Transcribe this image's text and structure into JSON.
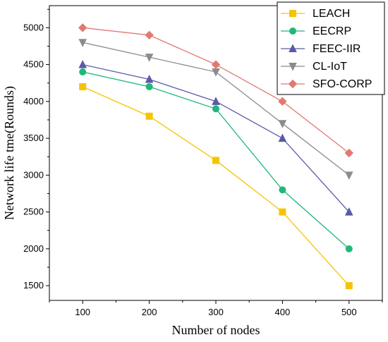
{
  "chart_data": {
    "type": "line",
    "title": "",
    "xlabel": "Number of nodes",
    "ylabel": "Network life tme(Rounds)",
    "x": [
      100,
      200,
      300,
      400,
      500
    ],
    "xlim": [
      50,
      550
    ],
    "ylim": [
      1300,
      5300
    ],
    "yticks": [
      1500,
      2000,
      2500,
      3000,
      3500,
      4000,
      4500,
      5000
    ],
    "grid": false,
    "legend_position": "top-right",
    "series": [
      {
        "name": "LEACH",
        "values": [
          4200,
          3800,
          3200,
          2500,
          1500
        ],
        "color": "#f5c400",
        "marker": "square"
      },
      {
        "name": "EECRP",
        "values": [
          4400,
          4200,
          3900,
          2800,
          2000
        ],
        "color": "#1fb87a",
        "marker": "circle"
      },
      {
        "name": "FEEC-IIR",
        "values": [
          4500,
          4300,
          4000,
          3500,
          2500
        ],
        "color": "#5a5aa8",
        "marker": "triangle-up"
      },
      {
        "name": "CL-IoT",
        "values": [
          4800,
          4600,
          4400,
          3700,
          3000
        ],
        "color": "#8c8c8c",
        "marker": "triangle-down"
      },
      {
        "name": "SFO-CORP",
        "values": [
          5000,
          4900,
          4500,
          4000,
          3300
        ],
        "color": "#e07a72",
        "marker": "diamond"
      }
    ]
  }
}
